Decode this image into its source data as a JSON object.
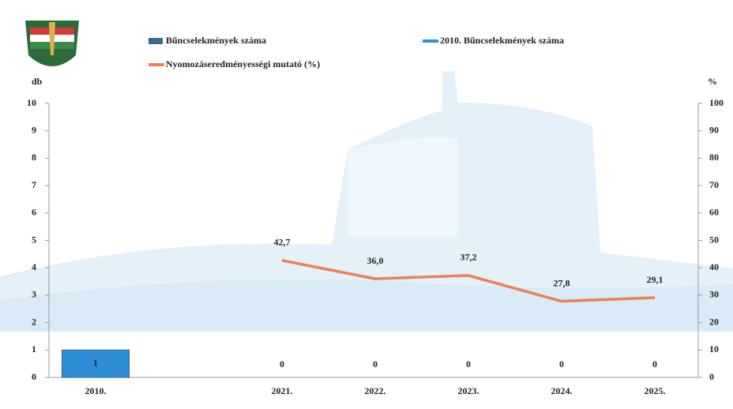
{
  "chart_data": {
    "type": "bar_line",
    "categories": [
      "2010.",
      null,
      "2021.",
      "2022.",
      "2023.",
      "2024.",
      "2025."
    ],
    "series": [
      {
        "name": "Bűncselekmények száma",
        "type": "bar",
        "color": "#3b6a88",
        "values": [
          null,
          null,
          0,
          0,
          0,
          0,
          0
        ]
      },
      {
        "name": "2010. Bűncselekmények száma",
        "type": "bar",
        "color": "#2f8fd6",
        "values": [
          1,
          null,
          null,
          null,
          null,
          null,
          null
        ]
      },
      {
        "name": "Nyomozáseredményességi mutató (%)",
        "type": "line",
        "axis": "y2",
        "color": "#ef7f55",
        "values": [
          null,
          null,
          42.7,
          36,
          37.2,
          27.8,
          29.1
        ],
        "value_labels": [
          null,
          null,
          "42,7",
          "36,0",
          "37,2",
          "27,8",
          "29,1"
        ]
      }
    ],
    "ylabel": "db",
    "y2label": "%",
    "ylim": [
      0,
      10
    ],
    "yticks": [
      0,
      1,
      2,
      3,
      4,
      5,
      6,
      7,
      8,
      9,
      10
    ],
    "y2lim": [
      0,
      100
    ],
    "y2ticks": [
      0,
      10,
      20,
      30,
      40,
      50,
      60,
      70,
      80,
      90,
      100
    ]
  }
}
